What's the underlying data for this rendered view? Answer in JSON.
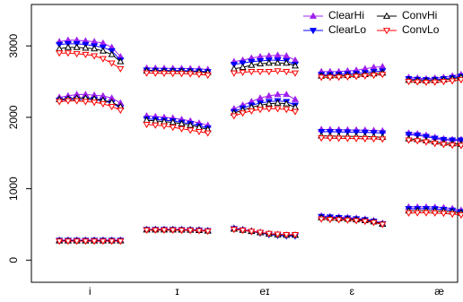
{
  "chart_data": {
    "type": "line",
    "x": [
      1,
      2,
      3,
      4,
      5,
      6,
      7,
      8,
      9,
      11,
      12,
      13,
      14,
      15,
      16,
      17,
      18,
      19,
      21,
      22,
      23,
      24,
      25,
      26,
      27,
      28,
      29,
      31,
      32,
      33,
      34,
      35,
      36,
      37,
      38,
      39,
      41,
      42,
      43,
      44,
      45,
      46,
      47,
      48
    ],
    "xlim": [
      -2.2,
      46.6
    ],
    "xticks": [
      {
        "value": 4.5,
        "label": "i"
      },
      {
        "value": 14.5,
        "label": "ɪ"
      },
      {
        "value": 24.5,
        "label": "eɪ"
      },
      {
        "value": 34.5,
        "label": "ɛ"
      },
      {
        "value": 44.5,
        "label": "æ"
      }
    ],
    "ylim": [
      -310,
      3580
    ],
    "yticks": [
      0,
      1000,
      2000,
      3000
    ],
    "legend": "top-right",
    "series": [
      {
        "name": "ClearHi",
        "color": "#a020f0",
        "marker": "triangle-up",
        "filled": true,
        "values": [
          [
            282,
            282,
            282,
            282,
            282,
            282,
            282,
            282,
            null,
            430,
            432,
            432,
            432,
            430,
            428,
            424,
            415,
            null,
            450,
            430,
            410,
            390,
            370,
            360,
            350,
            350,
            null,
            620,
            612,
            605,
            598,
            588,
            575,
            555,
            515,
            null,
            745,
            745,
            745,
            742,
            735,
            722,
            700,
            640
          ],
          [
            2280,
            2300,
            2320,
            2320,
            2310,
            2300,
            2270,
            2200,
            null,
            2020,
            2010,
            2000,
            1990,
            1970,
            1950,
            1920,
            1890,
            null,
            2120,
            2170,
            2220,
            2270,
            2300,
            2320,
            2320,
            2250,
            null,
            1830,
            1828,
            1826,
            1824,
            1822,
            1820,
            1816,
            1810,
            null,
            1780,
            1770,
            1750,
            1720,
            1700,
            1690,
            1690,
            1690
          ],
          [
            3060,
            3080,
            3080,
            3070,
            3060,
            3040,
            2980,
            2850,
            null,
            2690,
            2688,
            2686,
            2685,
            2684,
            2682,
            2678,
            2670,
            null,
            2780,
            2800,
            2830,
            2850,
            2860,
            2870,
            2860,
            2800,
            null,
            2640,
            2640,
            2640,
            2650,
            2660,
            2680,
            2700,
            2710,
            null,
            2560,
            2550,
            2540,
            2550,
            2560,
            2580,
            2600,
            2640
          ]
        ]
      },
      {
        "name": "ClearLo",
        "color": "#0000ff",
        "marker": "triangle-down",
        "filled": true,
        "values": [
          [
            276,
            276,
            276,
            276,
            276,
            276,
            276,
            276,
            null,
            428,
            428,
            428,
            428,
            426,
            424,
            420,
            412,
            null,
            440,
            422,
            400,
            378,
            358,
            345,
            338,
            338,
            null,
            610,
            602,
            595,
            588,
            578,
            565,
            545,
            508,
            null,
            720,
            720,
            720,
            718,
            710,
            698,
            678,
            625
          ],
          [
            2240,
            2250,
            2250,
            2250,
            2250,
            2230,
            2200,
            2130,
            null,
            1980,
            1970,
            1960,
            1950,
            1930,
            1910,
            1880,
            1850,
            null,
            2080,
            2130,
            2170,
            2200,
            2220,
            2230,
            2220,
            2170,
            null,
            1800,
            1798,
            1796,
            1794,
            1792,
            1790,
            1786,
            1780,
            null,
            1760,
            1750,
            1730,
            1705,
            1688,
            1680,
            1680,
            1680
          ],
          [
            3020,
            3030,
            3030,
            3020,
            3000,
            2980,
            2930,
            2800,
            null,
            2660,
            2658,
            2656,
            2655,
            2654,
            2650,
            2646,
            2638,
            null,
            2740,
            2760,
            2780,
            2790,
            2800,
            2800,
            2790,
            2740,
            null,
            2600,
            2600,
            2602,
            2608,
            2615,
            2625,
            2640,
            2650,
            null,
            2540,
            2530,
            2525,
            2530,
            2540,
            2555,
            2575,
            2600
          ]
        ]
      },
      {
        "name": "ConvHi",
        "color": "#000000",
        "marker": "triangle-up",
        "filled": false,
        "values": [
          [
            270,
            270,
            270,
            270,
            270,
            270,
            270,
            270,
            null,
            425,
            425,
            425,
            425,
            423,
            421,
            417,
            408,
            null,
            435,
            420,
            402,
            385,
            368,
            356,
            350,
            350,
            null,
            595,
            588,
            582,
            575,
            565,
            555,
            538,
            505,
            null,
            690,
            692,
            692,
            690,
            685,
            675,
            660,
            615
          ],
          [
            2250,
            2260,
            2270,
            2270,
            2260,
            2240,
            2210,
            2150,
            null,
            1960,
            1950,
            1940,
            1930,
            1910,
            1890,
            1860,
            1830,
            null,
            2060,
            2100,
            2140,
            2170,
            2190,
            2200,
            2190,
            2140,
            null,
            1740,
            1738,
            1736,
            1734,
            1732,
            1730,
            1726,
            1720,
            null,
            1700,
            1690,
            1675,
            1655,
            1640,
            1630,
            1625,
            1620
          ],
          [
            2960,
            2980,
            2980,
            2970,
            2960,
            2930,
            2880,
            2780,
            null,
            2650,
            2648,
            2646,
            2645,
            2644,
            2640,
            2635,
            2628,
            null,
            2680,
            2700,
            2730,
            2750,
            2760,
            2760,
            2760,
            2720,
            null,
            2580,
            2580,
            2582,
            2586,
            2592,
            2600,
            2610,
            2620,
            null,
            2520,
            2515,
            2510,
            2515,
            2525,
            2540,
            2560,
            2580
          ]
        ]
      },
      {
        "name": "ConvLo",
        "color": "#ff0000",
        "marker": "triangle-down",
        "filled": false,
        "values": [
          [
            265,
            265,
            265,
            265,
            265,
            265,
            265,
            265,
            null,
            420,
            420,
            420,
            420,
            418,
            416,
            412,
            405,
            null,
            430,
            418,
            402,
            388,
            372,
            362,
            356,
            356,
            null,
            575,
            570,
            565,
            560,
            552,
            543,
            528,
            500,
            null,
            660,
            662,
            662,
            660,
            655,
            645,
            632,
            605
          ],
          [
            2220,
            2230,
            2230,
            2220,
            2210,
            2190,
            2150,
            2100,
            null,
            1900,
            1890,
            1880,
            1860,
            1840,
            1820,
            1800,
            1780,
            null,
            2020,
            2060,
            2090,
            2110,
            2120,
            2120,
            2110,
            2080,
            null,
            1710,
            1708,
            1706,
            1704,
            1702,
            1700,
            1698,
            1695,
            null,
            1680,
            1670,
            1655,
            1635,
            1620,
            1610,
            1605,
            1600
          ],
          [
            2900,
            2900,
            2890,
            2880,
            2860,
            2820,
            2760,
            2680,
            null,
            2620,
            2618,
            2616,
            2614,
            2612,
            2608,
            2600,
            2590,
            null,
            2620,
            2630,
            2640,
            2640,
            2640,
            2650,
            2640,
            2620,
            null,
            2560,
            2560,
            2562,
            2566,
            2572,
            2580,
            2590,
            2600,
            null,
            2500,
            2495,
            2490,
            2492,
            2500,
            2510,
            2525,
            2540
          ]
        ]
      }
    ]
  }
}
